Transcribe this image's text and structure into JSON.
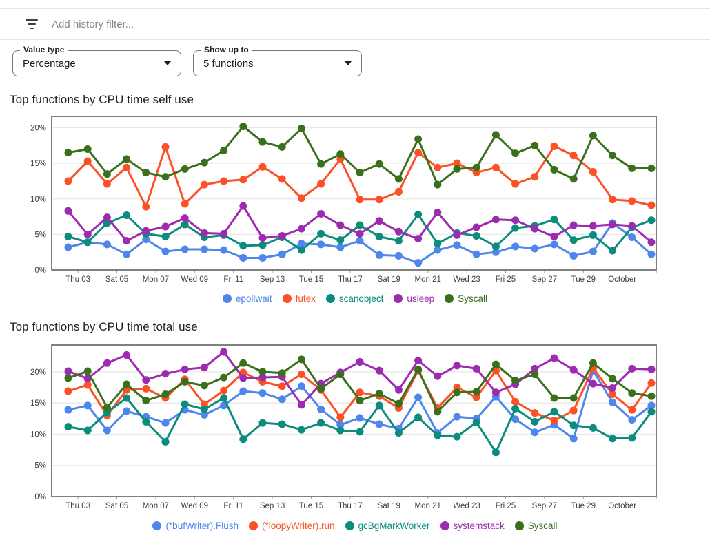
{
  "filter_bar": {
    "icon": "filter-list-icon",
    "placeholder": "Add history filter..."
  },
  "controls": [
    {
      "label": "Value type",
      "value": "Percentage"
    },
    {
      "label": "Show up to",
      "value": "5 functions"
    }
  ],
  "style": {
    "axis_color": "#616161",
    "grid_color": "#e9e9e9",
    "tick_text": "#3c4043"
  },
  "chart_data": [
    {
      "type": "line",
      "title": "Top functions by CPU time self use",
      "ylim": [
        0,
        21.6
      ],
      "yticks": [
        0,
        5,
        10,
        15,
        20
      ],
      "tick_format": "%",
      "grid": true,
      "legend_position": "bottom",
      "x_labels": [
        "Thu 03",
        "Sat 05",
        "Mon 07",
        "Wed 09",
        "Fri 11",
        "Sep 13",
        "Tue 15",
        "Thu 17",
        "Sat 19",
        "Mon 21",
        "Wed 23",
        "Fri 25",
        "Sep 27",
        "Tue 29",
        "October"
      ],
      "series": [
        {
          "name": "epollwait",
          "color": "#4e86ec",
          "values": [
            3.2,
            3.9,
            3.6,
            2.2,
            4.3,
            2.6,
            2.9,
            2.9,
            2.8,
            1.7,
            1.7,
            2.2,
            3.7,
            3.6,
            3.2,
            4.1,
            2.1,
            2.0,
            1.0,
            2.8,
            3.5,
            2.2,
            2.5,
            3.3,
            3.0,
            3.6,
            2.0,
            2.6,
            6.6,
            4.6,
            2.2
          ]
        },
        {
          "name": "futex",
          "color": "#fb5127",
          "values": [
            12.5,
            15.3,
            12.1,
            14.4,
            8.9,
            17.3,
            9.3,
            12.0,
            12.5,
            12.7,
            14.5,
            12.8,
            10.1,
            12.1,
            15.6,
            9.9,
            9.9,
            11.0,
            16.5,
            14.4,
            15.0,
            13.7,
            14.4,
            12.1,
            13.1,
            17.4,
            16.1,
            13.8,
            9.9,
            9.7,
            9.1
          ]
        },
        {
          "name": "scanobject",
          "color": "#0b8c7d",
          "values": [
            4.7,
            3.9,
            6.6,
            7.7,
            5.1,
            4.7,
            6.4,
            4.6,
            4.9,
            3.4,
            3.5,
            4.6,
            2.8,
            5.1,
            4.2,
            6.3,
            4.7,
            4.1,
            7.8,
            3.7,
            5.2,
            4.8,
            3.3,
            5.9,
            6.2,
            7.1,
            4.2,
            4.9,
            2.7,
            6.0,
            7.0
          ]
        },
        {
          "name": "usleep",
          "color": "#9d2bb0",
          "values": [
            8.3,
            5.0,
            7.4,
            4.1,
            5.5,
            6.1,
            7.3,
            5.2,
            5.1,
            9.0,
            4.5,
            4.8,
            5.8,
            7.9,
            6.3,
            5.1,
            6.9,
            5.4,
            4.4,
            8.1,
            4.9,
            6.0,
            7.1,
            7.0,
            5.8,
            4.7,
            6.3,
            6.2,
            6.4,
            6.2,
            3.9
          ]
        },
        {
          "name": "Syscall",
          "color": "#3a701c",
          "values": [
            16.5,
            17.0,
            13.5,
            15.6,
            13.7,
            13.1,
            14.2,
            15.1,
            16.8,
            20.2,
            18.0,
            17.3,
            19.9,
            14.9,
            16.3,
            13.7,
            14.9,
            12.8,
            18.4,
            12.0,
            14.2,
            14.4,
            19.0,
            16.4,
            17.5,
            14.1,
            12.8,
            18.9,
            16.1,
            14.3,
            14.3
          ]
        }
      ]
    },
    {
      "type": "line",
      "title": "Top functions by CPU time total use",
      "ylim": [
        0,
        24.3
      ],
      "yticks": [
        0,
        5,
        10,
        15,
        20
      ],
      "tick_format": "%",
      "grid": true,
      "legend_position": "bottom",
      "x_labels": [
        "Thu 03",
        "Sat 05",
        "Mon 07",
        "Wed 09",
        "Fri 11",
        "Sep 13",
        "Tue 15",
        "Thu 17",
        "Sat 19",
        "Mon 21",
        "Wed 23",
        "Fri 25",
        "Sep 27",
        "Tue 29",
        "October"
      ],
      "series": [
        {
          "name": "(*bufWriter).Flush",
          "color": "#4e86ec",
          "values": [
            13.9,
            14.6,
            10.6,
            13.7,
            12.8,
            11.8,
            13.9,
            13.1,
            14.6,
            16.9,
            16.6,
            15.6,
            17.7,
            14.0,
            11.5,
            12.6,
            11.6,
            10.9,
            15.9,
            10.2,
            12.8,
            12.5,
            16.0,
            12.4,
            10.3,
            11.5,
            9.3,
            20.2,
            15.1,
            12.3,
            14.6
          ]
        },
        {
          "name": "(*loopyWriter).run",
          "color": "#fb5127",
          "values": [
            16.9,
            17.9,
            13.0,
            17.1,
            17.3,
            15.8,
            18.8,
            14.8,
            17.0,
            19.9,
            18.4,
            17.7,
            19.6,
            17.1,
            12.7,
            16.7,
            16.1,
            14.2,
            20.2,
            14.2,
            17.5,
            15.9,
            20.2,
            15.2,
            13.4,
            12.2,
            13.8,
            20.6,
            16.4,
            13.9,
            18.2
          ]
        },
        {
          "name": "gcBgMarkWorker",
          "color": "#0b8c7d",
          "values": [
            11.2,
            10.6,
            13.5,
            15.8,
            12.0,
            8.8,
            14.8,
            14.0,
            15.8,
            9.2,
            11.8,
            11.6,
            10.7,
            11.8,
            10.6,
            10.4,
            14.6,
            10.2,
            12.7,
            9.8,
            9.6,
            11.9,
            7.1,
            14.1,
            12.0,
            13.6,
            11.4,
            11.0,
            9.3,
            9.4,
            13.6
          ]
        },
        {
          "name": "systemstack",
          "color": "#9d2bb0",
          "values": [
            20.1,
            18.9,
            21.4,
            22.7,
            18.7,
            19.7,
            20.4,
            20.7,
            23.2,
            19.0,
            19.1,
            19.2,
            14.7,
            18.1,
            19.9,
            21.6,
            20.2,
            17.1,
            21.8,
            19.3,
            21.0,
            20.5,
            16.7,
            18.0,
            20.5,
            22.2,
            20.3,
            18.1,
            17.4,
            20.5,
            20.4
          ]
        },
        {
          "name": "Syscall",
          "color": "#3a701c",
          "values": [
            19.0,
            20.1,
            14.3,
            18.0,
            15.4,
            16.4,
            18.4,
            17.8,
            19.1,
            21.4,
            20.0,
            19.8,
            22.0,
            17.3,
            19.6,
            15.4,
            16.5,
            14.9,
            20.4,
            13.6,
            16.7,
            16.8,
            21.2,
            18.6,
            19.6,
            15.8,
            15.8,
            21.4,
            18.9,
            16.6,
            16.1
          ]
        }
      ]
    }
  ]
}
